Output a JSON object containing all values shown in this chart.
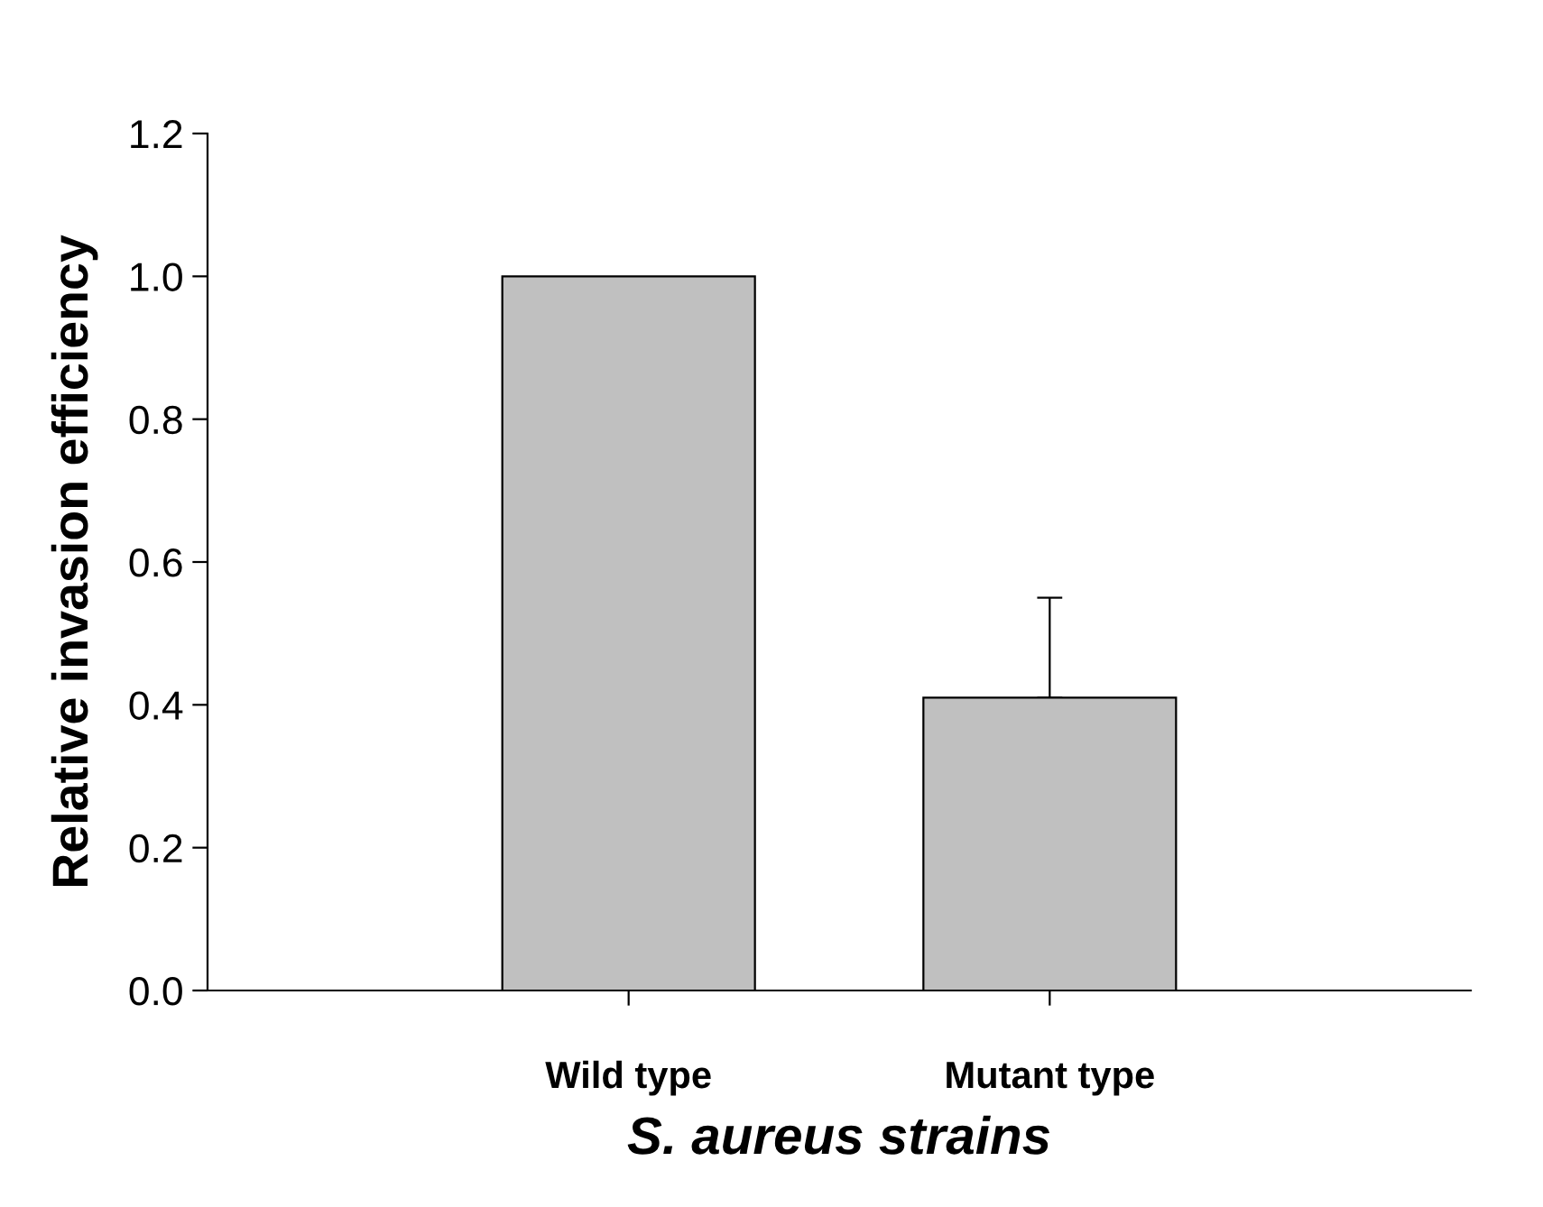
{
  "chart_data": {
    "type": "bar",
    "xlabel": "S. aureus strains",
    "ylabel": "Relative invasion efficiency",
    "categories": [
      "Wild type",
      "Mutant type"
    ],
    "values": [
      1.0,
      0.41
    ],
    "errors": [
      null,
      [
        0.41,
        0.55
      ]
    ],
    "color": "#c0c0c0",
    "ylim": [
      0,
      1.2
    ],
    "yticks": [
      {
        "value": 0,
        "label": "0.0"
      },
      {
        "value": 0.2,
        "label": "0.2"
      },
      {
        "value": 0.4,
        "label": "0.4"
      },
      {
        "value": 0.6,
        "label": "0.6"
      },
      {
        "value": 0.8,
        "label": "0.8"
      },
      {
        "value": 1.0,
        "label": "1.0"
      },
      {
        "value": 1.2,
        "label": "1.2"
      }
    ],
    "grid": false,
    "legend": false
  }
}
